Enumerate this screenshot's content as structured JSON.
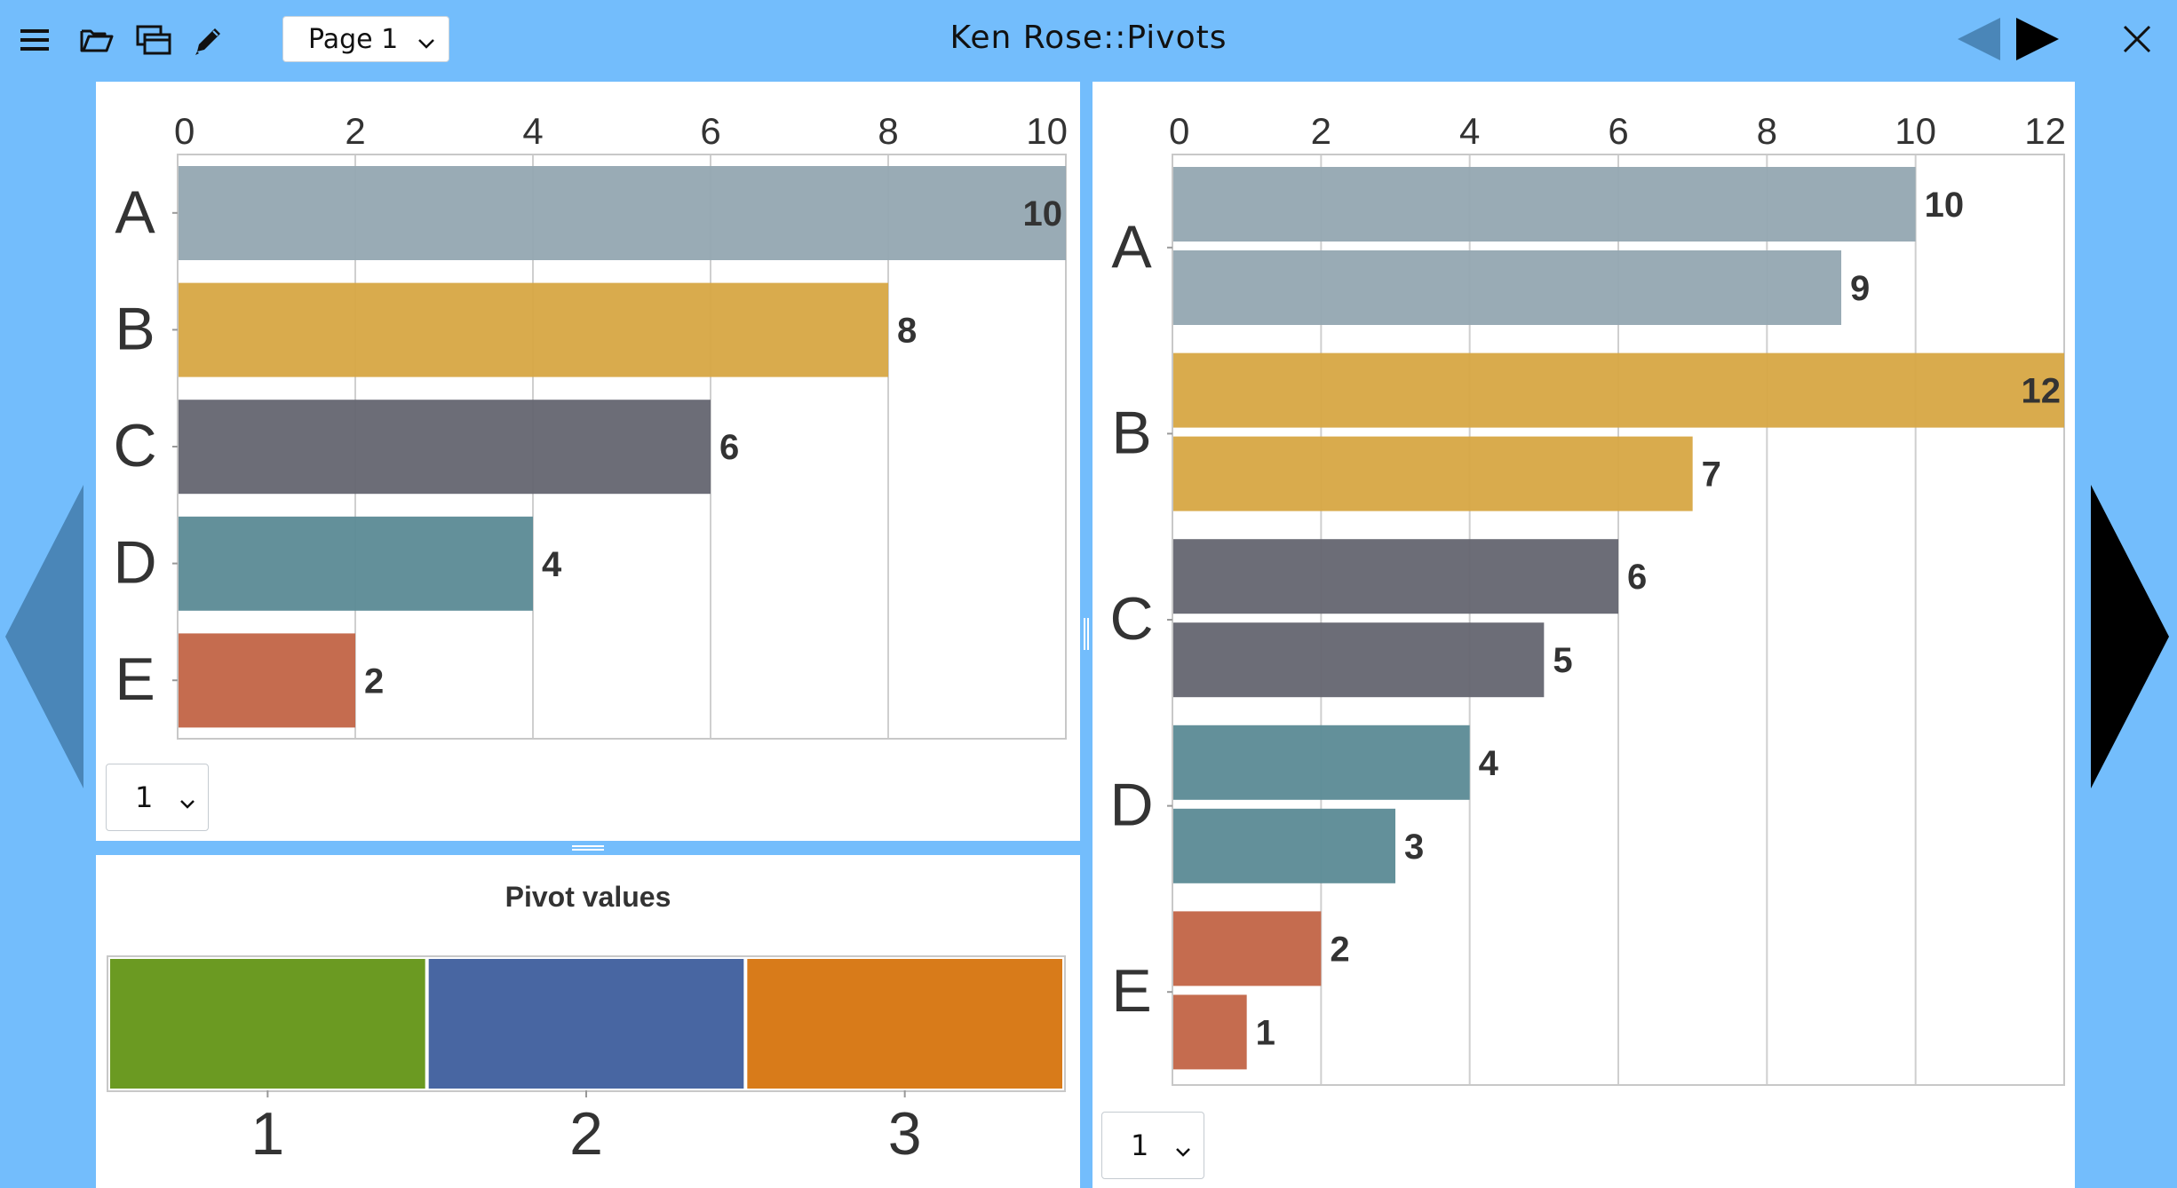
{
  "toolbar": {
    "page_select_value": "Page 1",
    "title": "Ken Rose::Pivots"
  },
  "icons": {
    "menu": "menu-icon",
    "open": "folder-open-icon",
    "windows": "windows-icon",
    "edit": "pencil-icon",
    "prev": "triangle-left-icon",
    "next": "triangle-right-icon",
    "close": "close-icon"
  },
  "colors": {
    "background": "#73bdfc",
    "series_A": "#93a7b1",
    "series_B": "#d7a743",
    "series_C": "#646570",
    "series_D": "#5b8a95",
    "series_E": "#c26446",
    "pivot_1": "#6b9a22",
    "pivot_2": "#4866a2",
    "pivot_3": "#d87b1a"
  },
  "left_chart_select": {
    "value": "1"
  },
  "right_chart_select": {
    "value": "1"
  },
  "pivot_legend": {
    "title": "Pivot values",
    "items": [
      {
        "label": "1",
        "color": "#6b9a22"
      },
      {
        "label": "2",
        "color": "#4866a2"
      },
      {
        "label": "3",
        "color": "#d87b1a"
      }
    ]
  },
  "chart_data": [
    {
      "type": "bar",
      "orientation": "horizontal",
      "categories": [
        "A",
        "B",
        "C",
        "D",
        "E"
      ],
      "values": [
        10,
        8,
        6,
        4,
        2
      ],
      "xlim": [
        0,
        10
      ],
      "xticks": [
        "0",
        "2",
        "4",
        "6",
        "8",
        "10"
      ],
      "grid": true,
      "data_labels": true
    },
    {
      "type": "bar",
      "orientation": "horizontal",
      "categories": [
        "A",
        "B",
        "C",
        "D",
        "E"
      ],
      "series": [
        {
          "values": [
            10,
            12,
            6,
            4,
            2
          ]
        },
        {
          "values": [
            9,
            7,
            5,
            3,
            1
          ]
        }
      ],
      "xlim": [
        0,
        12
      ],
      "xticks": [
        "0",
        "2",
        "4",
        "6",
        "8",
        "10",
        "12"
      ],
      "grid": true,
      "data_labels": true
    }
  ]
}
